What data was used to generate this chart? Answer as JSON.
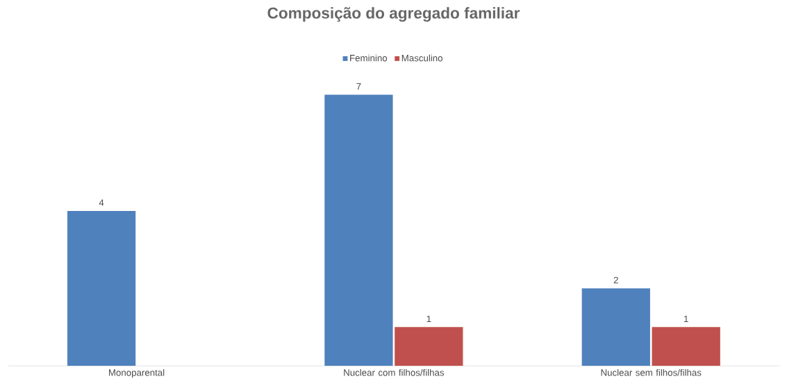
{
  "chart_data": {
    "type": "bar",
    "title": "Composição do agregado familiar",
    "categories": [
      "Monoparental",
      "Nuclear com filhos/filhas",
      "Nuclear sem filhos/filhas"
    ],
    "series": [
      {
        "name": "Feminino",
        "color": "#4f81bd",
        "values": [
          4,
          7,
          2
        ]
      },
      {
        "name": "Masculino",
        "color": "#c0504d",
        "values": [
          null,
          1,
          1
        ]
      }
    ],
    "data_labels": true,
    "legend": "top"
  }
}
